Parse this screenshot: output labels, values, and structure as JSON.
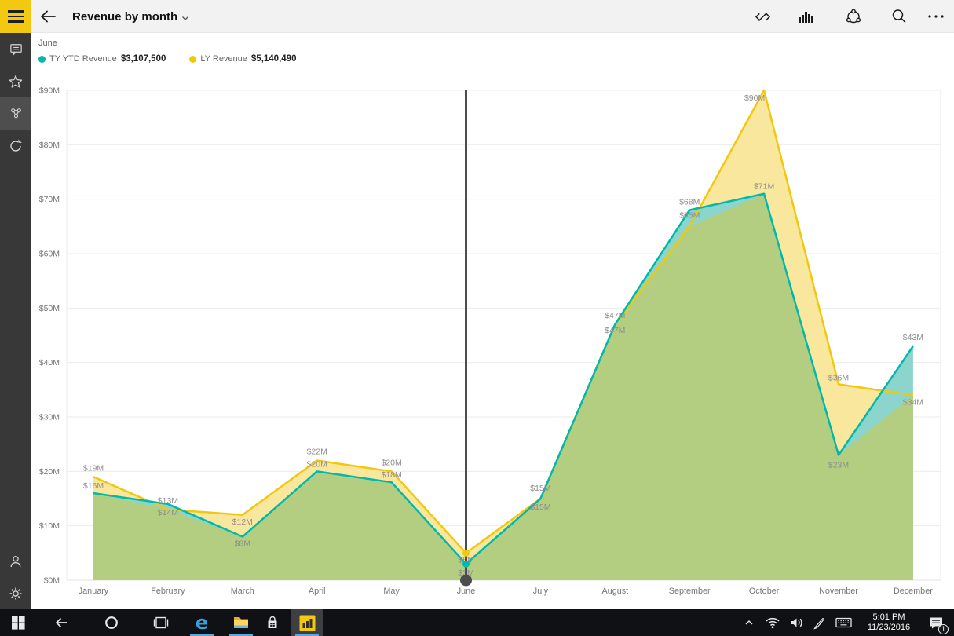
{
  "app_bar": {
    "title": "Revenue by month",
    "action_icons": [
      "resize-diagonal-icon",
      "bar-chart-icon",
      "share-annotate-icon",
      "search-icon",
      "more-icon"
    ]
  },
  "sidebar": {
    "accent_color": "#F2C811",
    "items": [
      {
        "icon": "annotation-comment-icon",
        "selected": false
      },
      {
        "icon": "favorite-star-icon",
        "selected": false
      },
      {
        "icon": "related-content-icon",
        "selected": true
      },
      {
        "icon": "refresh-icon",
        "selected": false
      }
    ],
    "bottom_items": [
      {
        "icon": "profile-person-icon"
      },
      {
        "icon": "settings-gear-icon"
      }
    ]
  },
  "report": {
    "drill_label": "June",
    "legend": [
      {
        "name": "TY YTD Revenue",
        "value": "$3,107,500",
        "color": "#01B8AA"
      },
      {
        "name": "LY Revenue",
        "value": "$5,140,490",
        "color": "#F2C80F"
      }
    ]
  },
  "chart_data": {
    "type": "area",
    "title": "Revenue by month",
    "categories": [
      "January",
      "February",
      "March",
      "April",
      "May",
      "June",
      "July",
      "August",
      "September",
      "October",
      "November",
      "December"
    ],
    "series": [
      {
        "name": "TY YTD Revenue",
        "color": "#01B8AA",
        "values": [
          16,
          14,
          8,
          20,
          18,
          3,
          15,
          47,
          68,
          71,
          23,
          43
        ],
        "labels": [
          "$16M",
          "$14M",
          "$8M",
          "$20M",
          "$18M",
          "$3M",
          "$15M",
          "$47M",
          "$68M",
          "$71M",
          "$23M",
          "$43M"
        ]
      },
      {
        "name": "LY Revenue",
        "color": "#F2C80F",
        "values": [
          19,
          13,
          12,
          22,
          20,
          5,
          15,
          47,
          65,
          90,
          36,
          34
        ],
        "labels": [
          "$19M",
          "$13M",
          "$12M",
          "$22M",
          "$20M",
          "$5M",
          "$15M",
          "$47M",
          "$65M",
          "$90M",
          "$36M",
          "$34M"
        ]
      }
    ],
    "ylim": [
      0,
      90
    ],
    "y_tick_step": 10,
    "y_tick_labels": [
      "$0M",
      "$10M",
      "$20M",
      "$30M",
      "$40M",
      "$50M",
      "$60M",
      "$70M",
      "$80M",
      "$90M"
    ],
    "grid": true,
    "legend_position": "top-left",
    "selected_category": "June",
    "selected_index": 5
  },
  "taskbar": {
    "left_icons": [
      "start-icon",
      "back-icon",
      "cortana-icon",
      "task-view-icon"
    ],
    "app_icons": [
      "edge-icon",
      "file-explorer-icon",
      "store-icon",
      "power-bi-icon"
    ],
    "active_app": "power-bi",
    "tray_icons": [
      "tray-chevron-icon",
      "wifi-icon",
      "volume-icon",
      "pen-icon",
      "keyboard-icon",
      "action-center-icon"
    ],
    "time": "5:01 PM",
    "date": "11/23/2016",
    "notification_badge": "1"
  },
  "colors": {
    "accent_yellow": "#F2C811",
    "teal": "#01B8AA",
    "series_yellow": "#F2C80F",
    "fill_yellow": "#FAE79E",
    "fill_teal": "#8BD5CD",
    "fill_overlap": "#B3CE81",
    "selection_line": "#4d4d4d",
    "grid_line": "#ebebeb",
    "axis_text": "#767676",
    "data_label_text": "#8e8e8e"
  }
}
